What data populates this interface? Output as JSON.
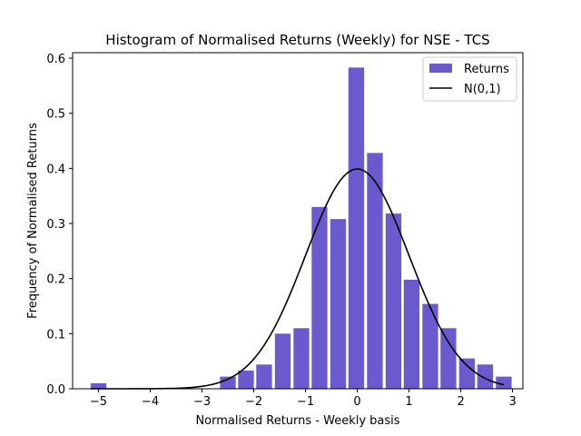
{
  "chart_data": {
    "type": "bar",
    "title": "Histogram of Normalised Returns (Weekly) for NSE - TCS",
    "xlabel": "Normalised Returns - Weekly basis",
    "ylabel": "Frequency of Normalised Returns",
    "xlim": [
      -5.5,
      3.2
    ],
    "ylim": [
      0,
      0.61
    ],
    "xticks": [
      -5,
      -4,
      -3,
      -2,
      -1,
      0,
      1,
      2,
      3
    ],
    "xtick_labels": [
      "−5",
      "−4",
      "−3",
      "−2",
      "−1",
      "0",
      "1",
      "2",
      "3"
    ],
    "yticks": [
      0.0,
      0.1,
      0.2,
      0.3,
      0.4,
      0.5,
      0.6
    ],
    "ytick_labels": [
      "0.0",
      "0.1",
      "0.2",
      "0.3",
      "0.4",
      "0.5",
      "0.6"
    ],
    "bin_width": 0.357,
    "bar_color": "#6a5acd",
    "curve_color": "#000000",
    "legend_position": "top-right",
    "bars": [
      {
        "x": -5.0,
        "value": 0.01
      },
      {
        "x": -2.5,
        "value": 0.022
      },
      {
        "x": -2.15,
        "value": 0.033
      },
      {
        "x": -1.8,
        "value": 0.044
      },
      {
        "x": -1.44,
        "value": 0.1
      },
      {
        "x": -1.08,
        "value": 0.11
      },
      {
        "x": -0.73,
        "value": 0.33
      },
      {
        "x": -0.37,
        "value": 0.308
      },
      {
        "x": -0.02,
        "value": 0.583
      },
      {
        "x": 0.34,
        "value": 0.428
      },
      {
        "x": 0.7,
        "value": 0.318
      },
      {
        "x": 1.05,
        "value": 0.198
      },
      {
        "x": 1.41,
        "value": 0.154
      },
      {
        "x": 1.76,
        "value": 0.11
      },
      {
        "x": 2.12,
        "value": 0.055
      },
      {
        "x": 2.47,
        "value": 0.044
      },
      {
        "x": 2.83,
        "value": 0.022
      }
    ],
    "curve": {
      "name": "N(0,1)",
      "x_range": [
        -5.15,
        2.83
      ]
    },
    "legend": [
      {
        "label": "Returns",
        "kind": "patch"
      },
      {
        "label": "N(0,1)",
        "kind": "line"
      }
    ]
  }
}
